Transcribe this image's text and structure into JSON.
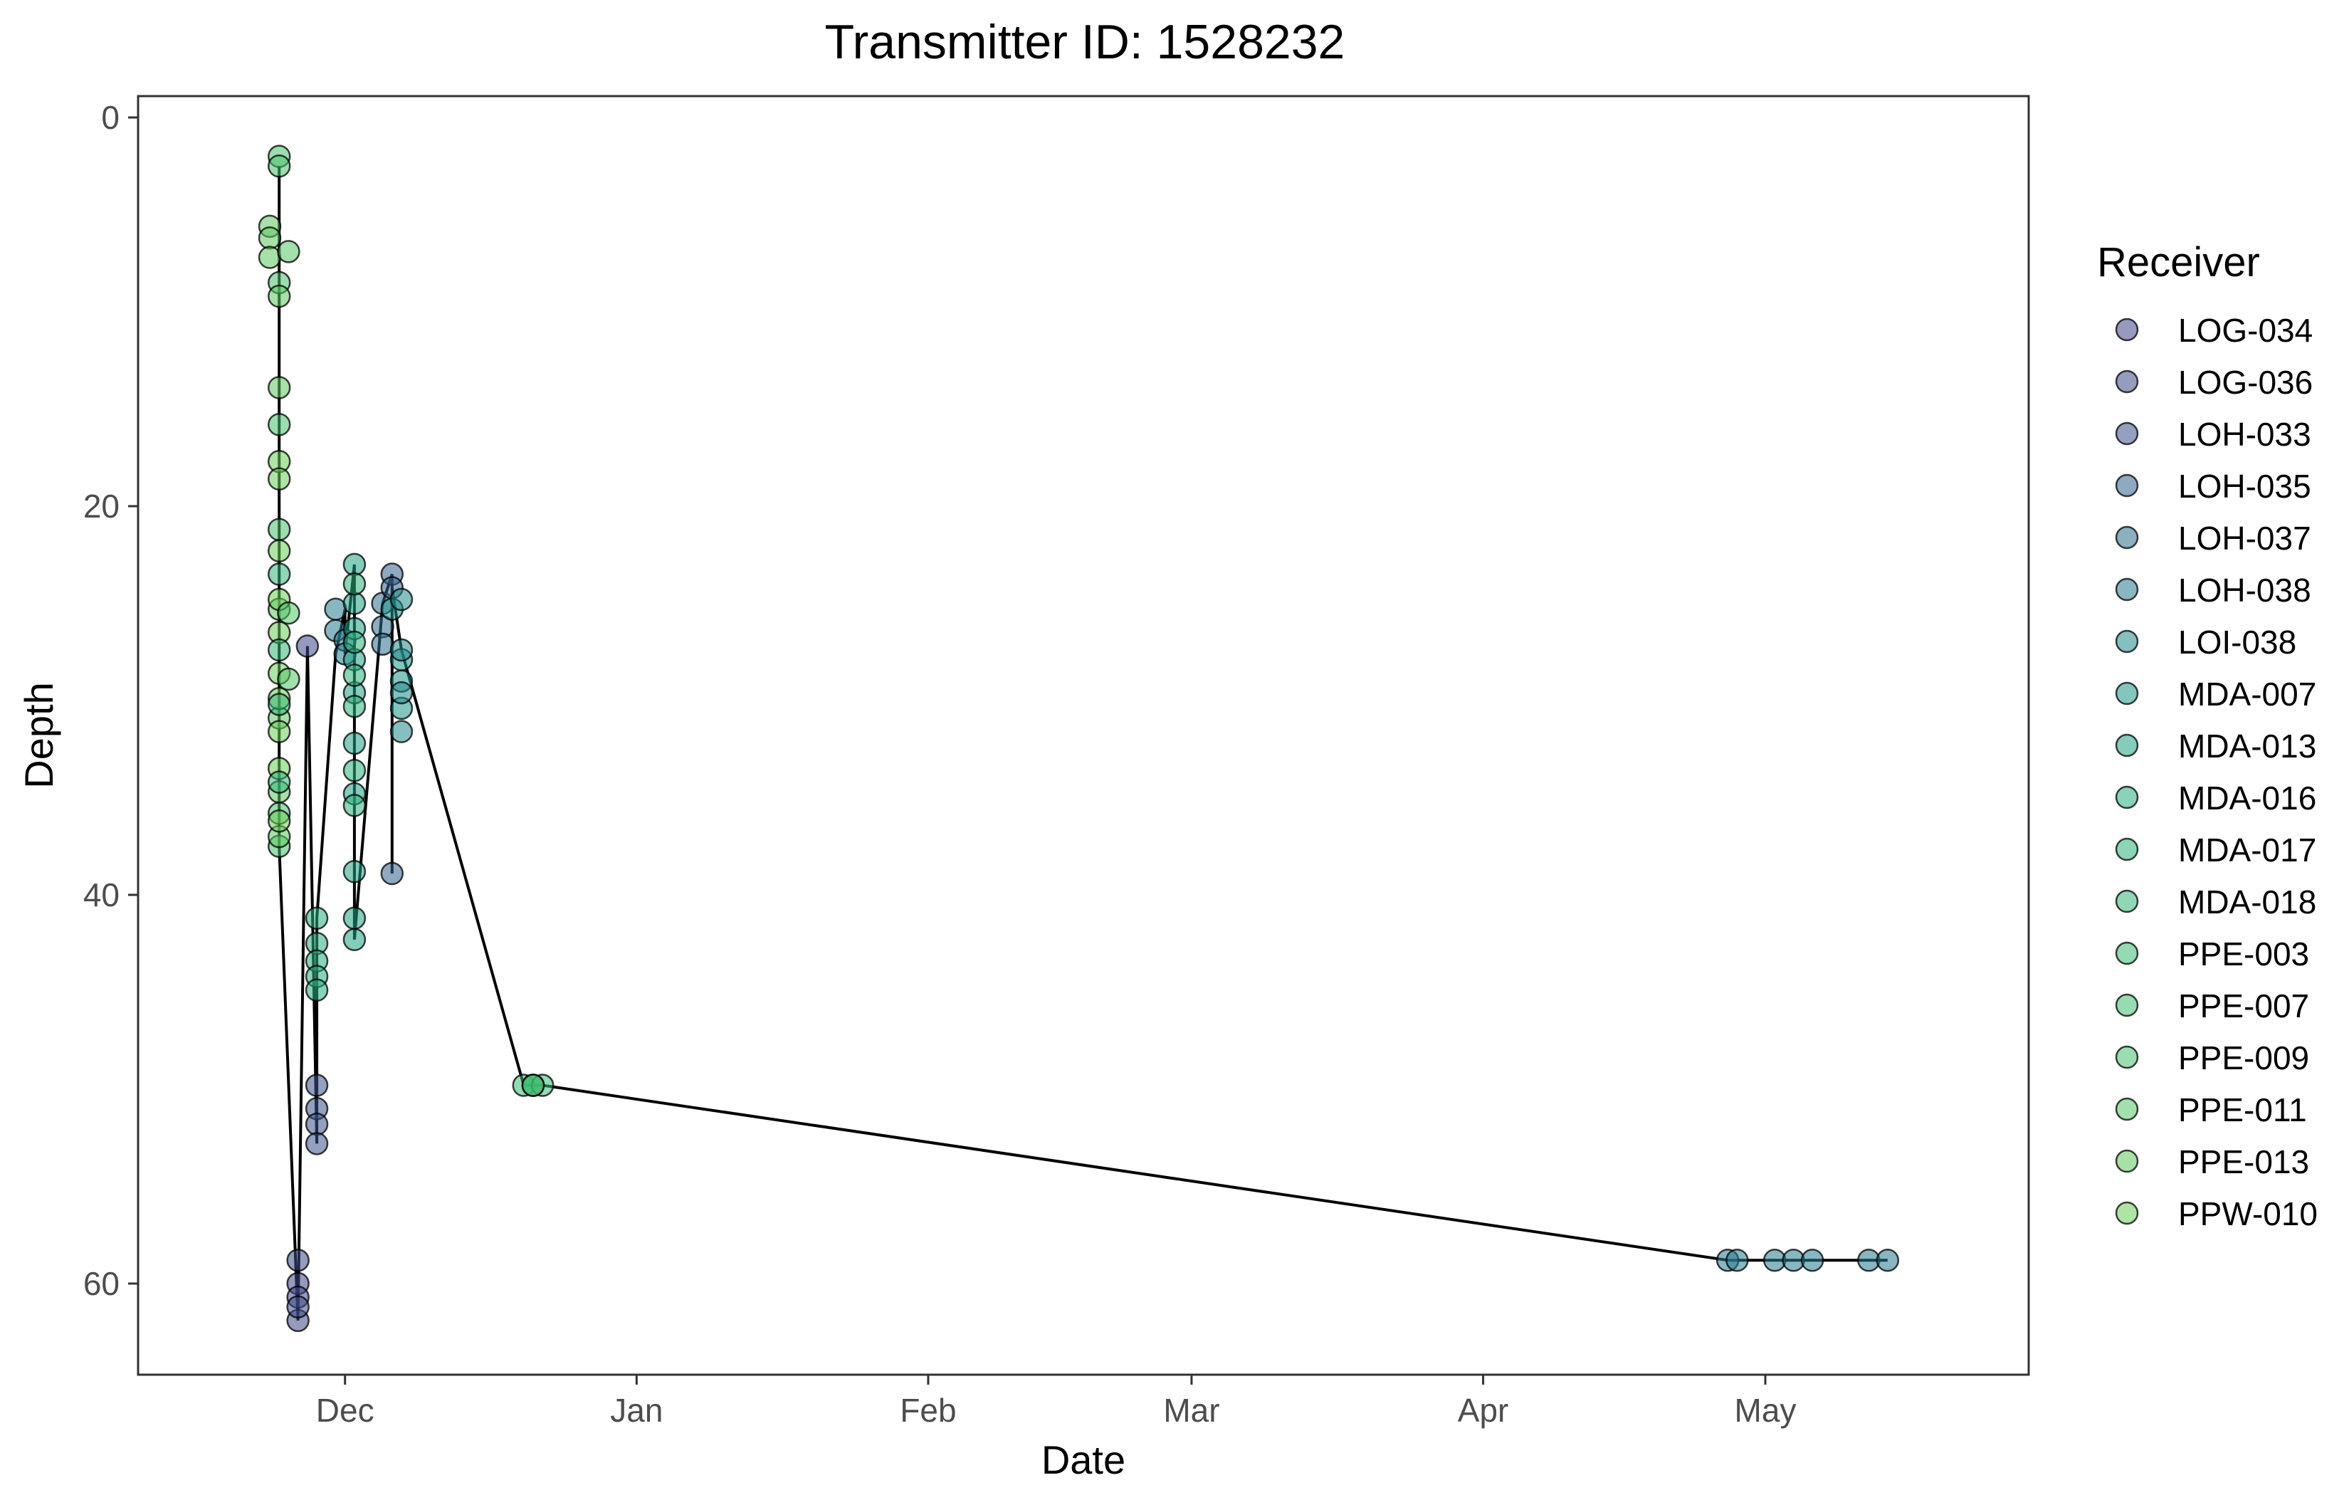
{
  "chart_data": {
    "type": "scatter",
    "title": "Transmitter ID: 1528232",
    "xlabel": "Date",
    "ylabel": "Depth",
    "y_reversed": true,
    "ylim": [
      0,
      65
    ],
    "yticks": [
      0,
      20,
      40,
      60
    ],
    "xlim": [
      "2017-11-09",
      "2018-05-29"
    ],
    "xticks": [
      {
        "date": "2017-12-01",
        "label": "Dec"
      },
      {
        "date": "2018-01-01",
        "label": "Jan"
      },
      {
        "date": "2018-02-01",
        "label": "Feb"
      },
      {
        "date": "2018-03-01",
        "label": "Mar"
      },
      {
        "date": "2018-04-01",
        "label": "Apr"
      },
      {
        "date": "2018-05-01",
        "label": "May"
      }
    ],
    "grid": false,
    "legend": {
      "title": "Receiver",
      "placement": "right",
      "entries": [
        {
          "name": "LOG-034",
          "color": "#404788"
        },
        {
          "name": "LOG-036",
          "color": "#3e4c8a"
        },
        {
          "name": "LOH-033",
          "color": "#3b528b"
        },
        {
          "name": "LOH-035",
          "color": "#33638d"
        },
        {
          "name": "LOH-037",
          "color": "#2d708e"
        },
        {
          "name": "LOH-038",
          "color": "#287c8e"
        },
        {
          "name": "LOI-038",
          "color": "#238a8d"
        },
        {
          "name": "MDA-007",
          "color": "#1f968b"
        },
        {
          "name": "MDA-013",
          "color": "#20a386"
        },
        {
          "name": "MDA-016",
          "color": "#29af7f"
        },
        {
          "name": "MDA-017",
          "color": "#2eb37c"
        },
        {
          "name": "MDA-018",
          "color": "#35b779"
        },
        {
          "name": "PPE-003",
          "color": "#3dbc74"
        },
        {
          "name": "PPE-007",
          "color": "#42be71"
        },
        {
          "name": "PPE-009",
          "color": "#4ac16d"
        },
        {
          "name": "PPE-011",
          "color": "#55c667"
        },
        {
          "name": "PPE-013",
          "color": "#5ec962"
        },
        {
          "name": "PPW-010",
          "color": "#6ccd5a"
        }
      ]
    },
    "series": [
      {
        "name": "PPE-009",
        "points": [
          [
            "2017-11-24",
            2
          ],
          [
            "2017-11-24",
            2.5
          ],
          [
            "2017-11-24",
            8.5
          ],
          [
            "2017-11-24",
            15.8
          ],
          [
            "2017-11-24",
            21.2
          ],
          [
            "2017-11-24",
            35.8
          ],
          [
            "2017-11-24",
            37.5
          ]
        ]
      },
      {
        "name": "PPE-013",
        "points": [
          [
            "2017-11-23",
            5.6
          ],
          [
            "2017-11-23",
            6.2
          ],
          [
            "2017-11-23",
            7.2
          ],
          [
            "2017-11-24",
            9.2
          ],
          [
            "2017-11-24",
            13.9
          ],
          [
            "2017-11-24",
            25.3
          ],
          [
            "2017-11-24",
            30.9
          ],
          [
            "2017-11-24",
            34.7
          ],
          [
            "2017-11-24",
            37
          ]
        ]
      },
      {
        "name": "PPW-010",
        "points": [
          [
            "2017-11-24",
            17.7
          ],
          [
            "2017-11-24",
            18.6
          ],
          [
            "2017-11-24",
            22.3
          ],
          [
            "2017-11-24",
            24.8
          ],
          [
            "2017-11-24",
            26.5
          ],
          [
            "2017-11-24",
            28.6
          ],
          [
            "2017-11-24",
            29.9
          ],
          [
            "2017-11-24",
            31.6
          ],
          [
            "2017-11-24",
            33.5
          ],
          [
            "2017-11-24",
            36.2
          ]
        ]
      },
      {
        "name": "MDA-018",
        "points": [
          [
            "2017-11-24",
            23.5
          ],
          [
            "2017-11-24",
            27.4
          ],
          [
            "2017-11-24",
            30.2
          ],
          [
            "2017-11-24",
            34.2
          ]
        ]
      },
      {
        "name": "PPE-011",
        "points": [
          [
            "2017-11-25",
            6.9
          ],
          [
            "2017-11-25",
            25.5
          ],
          [
            "2017-11-25",
            28.9
          ]
        ]
      },
      {
        "name": "LOG-034",
        "points": [
          [
            "2017-11-27",
            27.2
          ],
          [
            "2017-11-26",
            60
          ],
          [
            "2017-11-26",
            60.7
          ],
          [
            "2017-11-26",
            61.9
          ]
        ]
      },
      {
        "name": "LOG-036",
        "points": [
          [
            "2017-11-26",
            58.8
          ],
          [
            "2017-11-26",
            61.2
          ]
        ]
      },
      {
        "name": "LOH-033",
        "points": [
          [
            "2017-11-28",
            49.8
          ],
          [
            "2017-11-28",
            51
          ],
          [
            "2017-11-28",
            51.8
          ],
          [
            "2017-11-28",
            52.8
          ]
        ]
      },
      {
        "name": "MDA-016",
        "points": [
          [
            "2017-11-28",
            41.2
          ],
          [
            "2017-11-28",
            42.5
          ],
          [
            "2017-11-28",
            43.4
          ],
          [
            "2017-11-28",
            44.2
          ],
          [
            "2017-11-28",
            44.9
          ]
        ]
      },
      {
        "name": "LOH-038",
        "points": [
          [
            "2017-11-30",
            25.3
          ],
          [
            "2017-11-30",
            26.4
          ],
          [
            "2017-12-01",
            26.9
          ],
          [
            "2017-12-01",
            27.6
          ]
        ]
      },
      {
        "name": "MDA-013",
        "points": [
          [
            "2017-12-02",
            23
          ],
          [
            "2017-12-02",
            25
          ],
          [
            "2017-12-02",
            26.3
          ],
          [
            "2017-12-02",
            27.9
          ],
          [
            "2017-12-02",
            29.6
          ],
          [
            "2017-12-02",
            32.2
          ],
          [
            "2017-12-02",
            34.8
          ],
          [
            "2017-12-02",
            38.8
          ],
          [
            "2017-12-02",
            41.2
          ],
          [
            "2017-12-02",
            42.3
          ]
        ]
      },
      {
        "name": "MDA-017",
        "points": [
          [
            "2017-12-02",
            24
          ],
          [
            "2017-12-02",
            27
          ],
          [
            "2017-12-02",
            28.7
          ],
          [
            "2017-12-02",
            30.3
          ],
          [
            "2017-12-02",
            33.6
          ],
          [
            "2017-12-02",
            35.4
          ]
        ]
      },
      {
        "name": "LOH-037",
        "points": [
          [
            "2017-12-05",
            25
          ],
          [
            "2017-12-05",
            26.2
          ],
          [
            "2017-12-05",
            27.1
          ]
        ]
      },
      {
        "name": "LOH-035",
        "points": [
          [
            "2017-12-06",
            23.5
          ],
          [
            "2017-12-06",
            24.2
          ],
          [
            "2017-12-06",
            38.9
          ]
        ]
      },
      {
        "name": "MDA-007",
        "points": [
          [
            "2017-12-06",
            25.3
          ],
          [
            "2017-12-07",
            27.9
          ],
          [
            "2017-12-07",
            29
          ],
          [
            "2017-12-07",
            30.4
          ]
        ]
      },
      {
        "name": "LOI-038",
        "points": [
          [
            "2017-12-07",
            24.8
          ],
          [
            "2017-12-07",
            27.4
          ],
          [
            "2017-12-07",
            29.6
          ],
          [
            "2017-12-07",
            31.6
          ]
        ]
      },
      {
        "name": "PPE-003",
        "points": [
          [
            "2017-12-20",
            49.8
          ],
          [
            "2017-12-21",
            49.8
          ],
          [
            "2017-12-22",
            49.8
          ]
        ]
      },
      {
        "name": "PPE-007",
        "points": [
          [
            "2017-12-21",
            49.8
          ],
          [
            "2017-12-21",
            49.8
          ]
        ]
      }
    ],
    "extra_points": [
      {
        "name": "LOH-038",
        "points": [
          [
            "2018-04-27",
            58.8
          ],
          [
            "2018-04-28",
            58.8
          ],
          [
            "2018-05-02",
            58.8
          ],
          [
            "2018-05-04",
            58.8
          ],
          [
            "2018-05-06",
            58.8
          ],
          [
            "2018-05-12",
            58.8
          ],
          [
            "2018-05-14",
            58.8
          ]
        ]
      }
    ],
    "line_path": [
      [
        "2017-11-24",
        37.5
      ],
      [
        "2017-11-24",
        2.5
      ],
      [
        "2017-11-24",
        37.5
      ],
      [
        "2017-11-26",
        61.9
      ],
      [
        "2017-11-27",
        27.2
      ],
      [
        "2017-11-28",
        52.8
      ],
      [
        "2017-11-28",
        41.2
      ],
      [
        "2017-11-30",
        27.6
      ],
      [
        "2017-12-01",
        25.3
      ],
      [
        "2017-12-01",
        27.6
      ],
      [
        "2017-12-02",
        23
      ],
      [
        "2017-12-02",
        42.3
      ],
      [
        "2017-12-05",
        25
      ],
      [
        "2017-12-06",
        23.5
      ],
      [
        "2017-12-06",
        38.9
      ],
      [
        "2017-12-06",
        24.2
      ],
      [
        "2017-12-07",
        27.4
      ],
      [
        "2017-12-20",
        49.8
      ],
      [
        "2017-12-22",
        49.8
      ],
      [
        "2018-04-27",
        58.8
      ],
      [
        "2018-05-14",
        58.8
      ]
    ]
  }
}
